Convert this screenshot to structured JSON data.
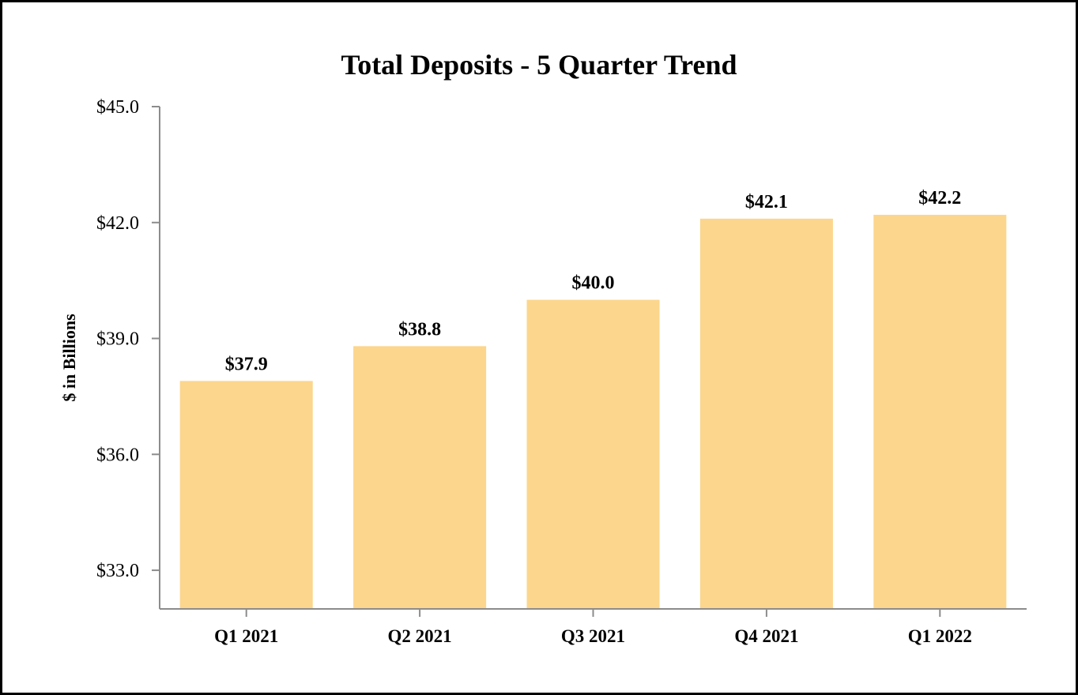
{
  "chart_data": {
    "type": "bar",
    "title": "Total Deposits - 5 Quarter Trend",
    "xlabel": "",
    "ylabel": "$ in Billions",
    "categories": [
      "Q1 2021",
      "Q2 2021",
      "Q3 2021",
      "Q4 2021",
      "Q1 2022"
    ],
    "values": [
      37.9,
      38.8,
      40.0,
      42.1,
      42.2
    ],
    "data_labels": [
      "$37.9",
      "$38.8",
      "$40.0",
      "$42.1",
      "$42.2"
    ],
    "ylim": [
      32.0,
      45.0
    ],
    "yticks": [
      33.0,
      36.0,
      39.0,
      42.0,
      45.0
    ],
    "ytick_labels": [
      "$33.0",
      "$36.0",
      "$39.0",
      "$42.0",
      "$45.0"
    ],
    "grid": false,
    "legend": "none",
    "bar_color": "#FCD68D",
    "axis_color": "#8C8C8C"
  }
}
